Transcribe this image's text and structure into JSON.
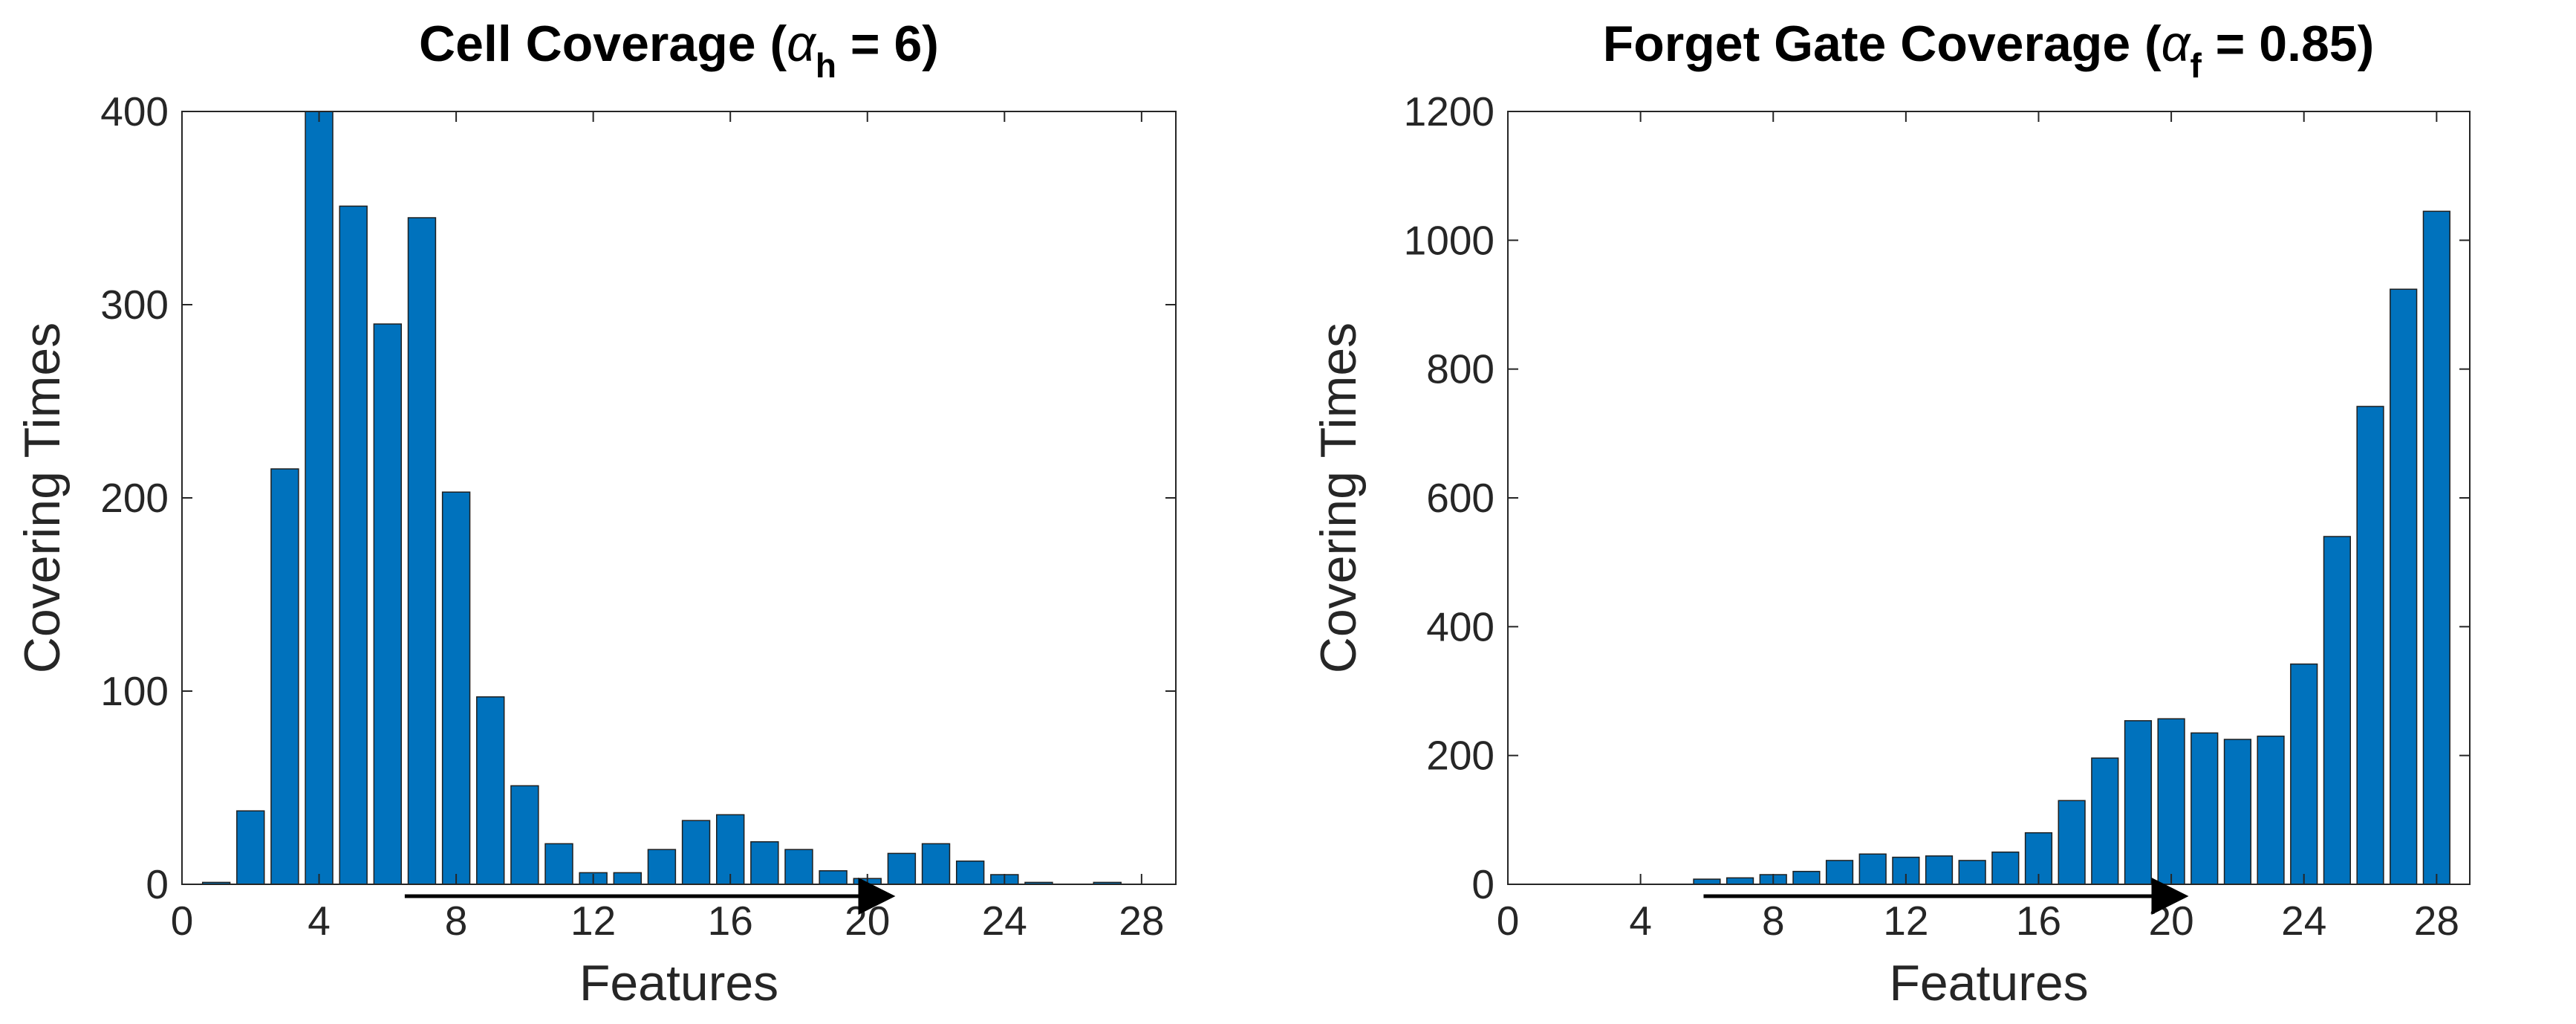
{
  "colors": {
    "bar_fill": "#0072BD",
    "bar_edge": "#1f1f1f",
    "axis": "#262626",
    "arrow": "#000000"
  },
  "chart_data": [
    {
      "type": "bar",
      "title": {
        "prefix": "Cell Coverage (",
        "symbol": "α",
        "subscript": "h",
        "suffix": " = 6)"
      },
      "xlabel": "Features",
      "ylabel": "Covering Times",
      "xlim": [
        0,
        29
      ],
      "ylim": [
        0,
        400
      ],
      "xticks": [
        "0",
        "4",
        "8",
        "12",
        "16",
        "20",
        "24",
        "28"
      ],
      "yticks": [
        "0",
        "100",
        "200",
        "300",
        "400"
      ],
      "x": [
        1,
        2,
        3,
        4,
        5,
        6,
        7,
        8,
        9,
        10,
        11,
        12,
        13,
        14,
        15,
        16,
        17,
        18,
        19,
        20,
        21,
        22,
        23,
        24,
        25,
        26,
        27,
        28
      ],
      "values": [
        1,
        38,
        215,
        400,
        351,
        290,
        345,
        203,
        97,
        51,
        21,
        6,
        6,
        18,
        33,
        36,
        22,
        18,
        7,
        3,
        16,
        21,
        12,
        5,
        1,
        0,
        1,
        0
      ],
      "arrow": {
        "from": 6.5,
        "to": 20.6
      },
      "grid": false,
      "legend": "none"
    },
    {
      "type": "bar",
      "title": {
        "prefix": "Forget Gate Coverage (",
        "symbol": "α",
        "subscript": "f",
        "suffix": " = 0.85)"
      },
      "xlabel": "Features",
      "ylabel": "Covering Times",
      "xlim": [
        0,
        29
      ],
      "ylim": [
        0,
        1200
      ],
      "xticks": [
        "0",
        "4",
        "8",
        "12",
        "16",
        "20",
        "24",
        "28"
      ],
      "yticks": [
        "0",
        "200",
        "400",
        "600",
        "800",
        "1000",
        "1200"
      ],
      "x": [
        1,
        2,
        3,
        4,
        5,
        6,
        7,
        8,
        9,
        10,
        11,
        12,
        13,
        14,
        15,
        16,
        17,
        18,
        19,
        20,
        21,
        22,
        23,
        24,
        25,
        26,
        27,
        28
      ],
      "values": [
        0,
        0,
        0,
        0,
        0,
        8,
        10,
        15,
        20,
        37,
        47,
        42,
        44,
        37,
        50,
        80,
        130,
        196,
        254,
        257,
        235,
        225,
        230,
        342,
        540,
        742,
        924,
        1045
      ],
      "arrow": {
        "from": 5.9,
        "to": 20.3
      },
      "grid": false,
      "legend": "none"
    }
  ]
}
